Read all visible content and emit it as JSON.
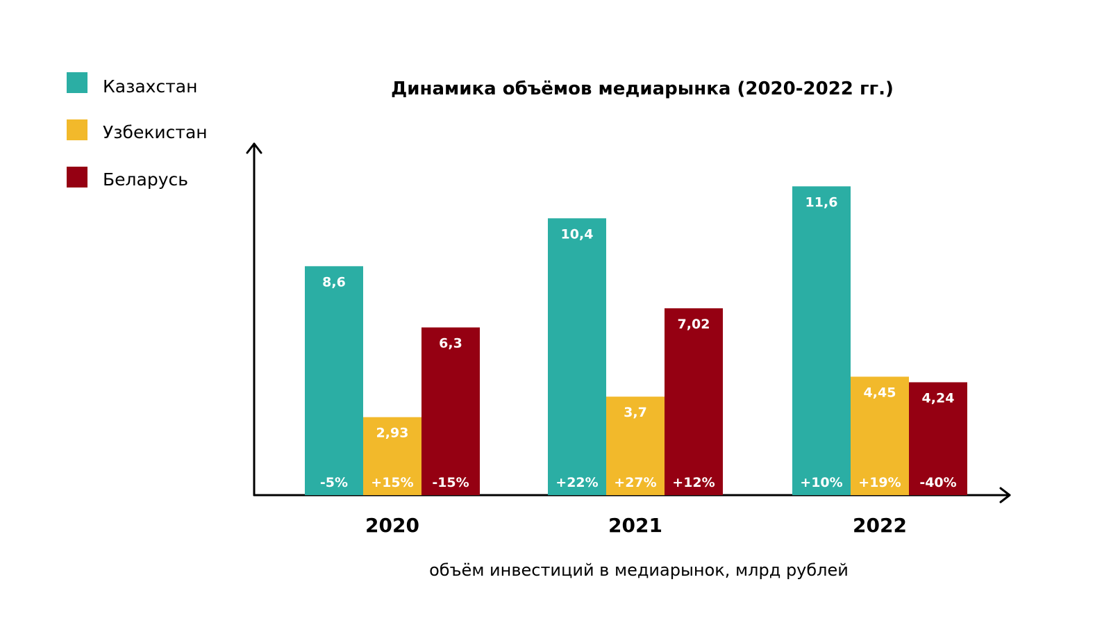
{
  "chart_data": {
    "type": "bar",
    "title": "Динамика объёмов медиарынка (2020-2022 гг.)",
    "xlabel": "объём инвестиций в медиарынок, млрд рублей",
    "ylabel": "",
    "categories": [
      "2020",
      "2021",
      "2022"
    ],
    "ylim": [
      0,
      13.2
    ],
    "grid": false,
    "legend": "top-left",
    "series": [
      {
        "name": "Казахстан",
        "color": "#2baea4",
        "values": [
          8.6,
          10.4,
          11.6
        ],
        "value_labels": [
          "8,6",
          "10,4",
          "11,6"
        ],
        "change_labels": [
          "-5%",
          "+22%",
          "+10%"
        ]
      },
      {
        "name": "Узбекистан",
        "color": "#f2b92b",
        "values": [
          2.93,
          3.7,
          4.45
        ],
        "value_labels": [
          "2,93",
          "3,7",
          "4,45"
        ],
        "change_labels": [
          "+15%",
          "+27%",
          "+19%"
        ]
      },
      {
        "name": "Беларусь",
        "color": "#950012",
        "values": [
          6.3,
          7.02,
          4.24
        ],
        "value_labels": [
          "6,3",
          "7,02",
          "4,24"
        ],
        "change_labels": [
          "-15%",
          "+12%",
          "-40%"
        ]
      }
    ]
  }
}
